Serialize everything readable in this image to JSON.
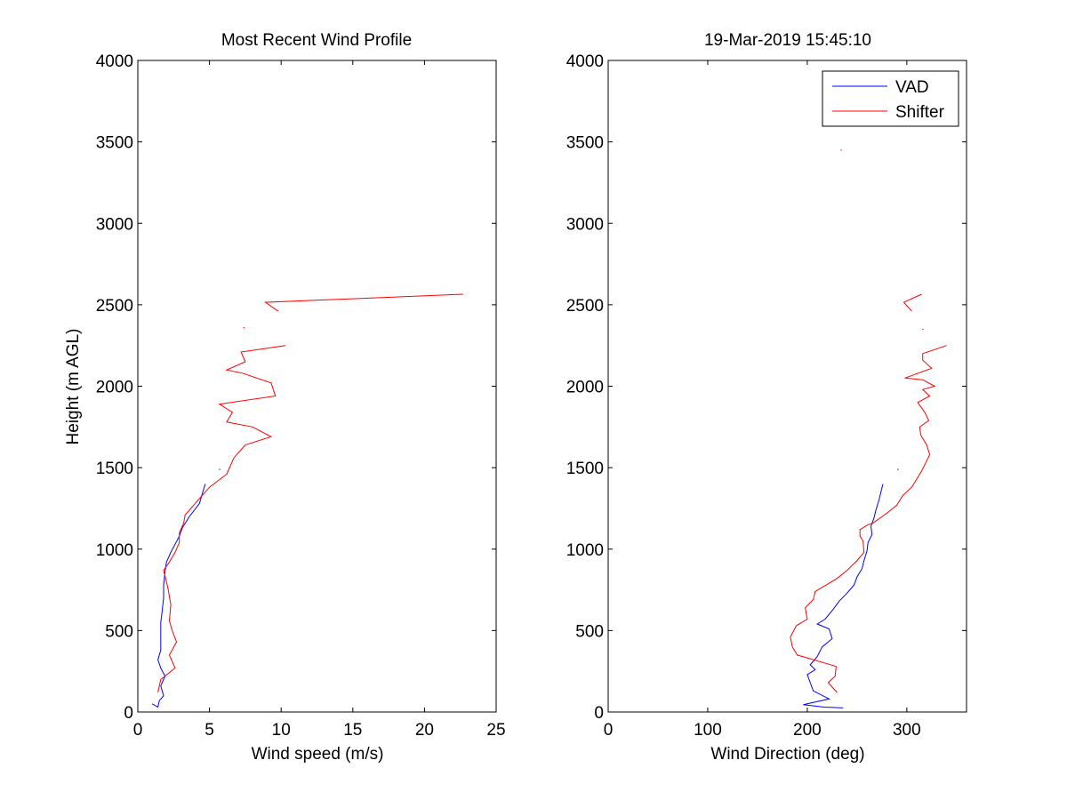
{
  "chart_data": [
    {
      "type": "line",
      "title": "Most Recent Wind Profile",
      "xlabel": "Wind speed (m/s)",
      "ylabel": "Height (m AGL)",
      "xlim": [
        0,
        25
      ],
      "ylim": [
        0,
        4000
      ],
      "xticks": [
        0,
        5,
        10,
        15,
        20,
        25
      ],
      "yticks": [
        0,
        500,
        1000,
        1500,
        2000,
        2500,
        3000,
        3500,
        4000
      ],
      "grid": false,
      "series": [
        {
          "name": "VAD",
          "color": "#0000ff",
          "points": [
            [
              1.0,
              50
            ],
            [
              1.4,
              30
            ],
            [
              1.5,
              70
            ],
            [
              1.8,
              100
            ],
            [
              1.6,
              160
            ],
            [
              1.9,
              220
            ],
            [
              1.6,
              270
            ],
            [
              1.4,
              320
            ],
            [
              1.6,
              380
            ],
            [
              1.6,
              430
            ],
            [
              1.6,
              490
            ],
            [
              1.6,
              550
            ],
            [
              1.7,
              620
            ],
            [
              1.8,
              700
            ],
            [
              1.8,
              780
            ],
            [
              1.9,
              860
            ],
            [
              2.0,
              920
            ],
            [
              2.3,
              980
            ],
            [
              2.6,
              1030
            ],
            [
              2.9,
              1080
            ],
            [
              3.1,
              1130
            ],
            [
              3.6,
              1200
            ],
            [
              4.3,
              1280
            ],
            [
              4.5,
              1340
            ],
            [
              4.7,
              1400
            ]
          ]
        },
        {
          "name": "Shifter",
          "color": "#ff0000",
          "points": [
            [
              1.4,
              120
            ],
            [
              1.6,
              200
            ],
            [
              2.6,
              270
            ],
            [
              2.2,
              350
            ],
            [
              2.7,
              430
            ],
            [
              2.4,
              500
            ],
            [
              2.2,
              560
            ],
            [
              2.3,
              660
            ],
            [
              2.1,
              760
            ],
            [
              1.8,
              870
            ],
            [
              2.2,
              920
            ],
            [
              2.6,
              980
            ],
            [
              2.9,
              1040
            ],
            [
              2.9,
              1100
            ],
            [
              3.2,
              1160
            ],
            [
              3.3,
              1210
            ],
            [
              3.8,
              1260
            ],
            [
              4.4,
              1320
            ],
            [
              5.0,
              1380
            ],
            [
              6.2,
              1460
            ],
            [
              6.7,
              1560
            ],
            [
              7.5,
              1640
            ],
            [
              9.3,
              1690
            ],
            [
              8.0,
              1750
            ],
            [
              6.2,
              1780
            ],
            [
              6.6,
              1840
            ],
            [
              5.7,
              1890
            ],
            [
              9.6,
              1940
            ],
            [
              9.3,
              2020
            ],
            [
              7.3,
              2080
            ],
            [
              6.2,
              2100
            ],
            [
              7.5,
              2150
            ],
            [
              7.2,
              2210
            ],
            [
              10.3,
              2250
            ]
          ]
        },
        {
          "name": "Shifter",
          "color": "#ff0000",
          "points": [
            [
              22.7,
              2565
            ],
            [
              8.9,
              2515
            ],
            [
              9.8,
              2460
            ]
          ]
        },
        {
          "name": "Shifter",
          "color": "#ff0000",
          "points": [
            [
              7.4,
              2360
            ]
          ]
        },
        {
          "name": "VAD",
          "color": "#0000ff",
          "points": [
            [
              5.7,
              1490
            ]
          ]
        }
      ]
    },
    {
      "type": "line",
      "title": "19-Mar-2019 15:45:10",
      "xlabel": "Wind Direction (deg)",
      "ylabel": "",
      "xlim": [
        0,
        360
      ],
      "ylim": [
        0,
        4000
      ],
      "xticks": [
        0,
        100,
        200,
        300
      ],
      "yticks": [
        0,
        500,
        1000,
        1500,
        2000,
        2500,
        3000,
        3500,
        4000
      ],
      "grid": false,
      "legend": {
        "position": "top-right",
        "entries": [
          {
            "label": "VAD",
            "color": "#0000ff"
          },
          {
            "label": "Shifter",
            "color": "#ff0000"
          }
        ]
      },
      "series": [
        {
          "name": "VAD",
          "color": "#0000ff",
          "points": [
            [
              236,
              25
            ],
            [
              217,
              30
            ],
            [
              196,
              45
            ],
            [
              222,
              80
            ],
            [
              206,
              130
            ],
            [
              203,
              180
            ],
            [
              200,
              230
            ],
            [
              208,
              260
            ],
            [
              203,
              290
            ],
            [
              210,
              340
            ],
            [
              215,
              400
            ],
            [
              225,
              450
            ],
            [
              222,
              510
            ],
            [
              210,
              540
            ],
            [
              218,
              570
            ],
            [
              226,
              630
            ],
            [
              232,
              680
            ],
            [
              240,
              730
            ],
            [
              247,
              780
            ],
            [
              250,
              830
            ],
            [
              255,
              880
            ],
            [
              257,
              930
            ],
            [
              260,
              990
            ],
            [
              261,
              1040
            ],
            [
              265,
              1090
            ],
            [
              264,
              1140
            ],
            [
              267,
              1190
            ],
            [
              269,
              1240
            ],
            [
              272,
              1300
            ],
            [
              274,
              1350
            ],
            [
              276,
              1400
            ]
          ]
        },
        {
          "name": "Shifter",
          "color": "#ff0000",
          "points": [
            [
              230,
              120
            ],
            [
              221,
              180
            ],
            [
              228,
              220
            ],
            [
              229,
              280
            ],
            [
              190,
              350
            ],
            [
              185,
              400
            ],
            [
              183,
              460
            ],
            [
              189,
              530
            ],
            [
              200,
              570
            ],
            [
              198,
              640
            ],
            [
              206,
              690
            ],
            [
              208,
              740
            ],
            [
              230,
              820
            ],
            [
              240,
              870
            ],
            [
              250,
              930
            ],
            [
              257,
              980
            ],
            [
              256,
              1050
            ],
            [
              253,
              1080
            ],
            [
              253,
              1120
            ],
            [
              261,
              1150
            ],
            [
              266,
              1160
            ],
            [
              280,
              1220
            ],
            [
              290,
              1270
            ],
            [
              296,
              1330
            ],
            [
              305,
              1380
            ],
            [
              309,
              1420
            ],
            [
              315,
              1480
            ],
            [
              323,
              1580
            ],
            [
              320,
              1640
            ],
            [
              314,
              1700
            ],
            [
              313,
              1750
            ],
            [
              322,
              1790
            ],
            [
              318,
              1840
            ],
            [
              311,
              1900
            ],
            [
              323,
              1940
            ],
            [
              316,
              1980
            ],
            [
              328,
              2000
            ],
            [
              316,
              2040
            ],
            [
              298,
              2050
            ],
            [
              325,
              2110
            ],
            [
              316,
              2160
            ],
            [
              316,
              2200
            ],
            [
              340,
              2250
            ]
          ]
        },
        {
          "name": "Shifter",
          "color": "#ff0000",
          "points": [
            [
              315,
              2565
            ],
            [
              297,
              2515
            ],
            [
              305,
              2460
            ]
          ]
        },
        {
          "name": "Shifter",
          "color": "#ff0000",
          "points": [
            [
              316,
              2350
            ]
          ]
        },
        {
          "name": "Shifter",
          "color": "#ff0000",
          "points": [
            [
              234,
              3450
            ]
          ]
        },
        {
          "name": "VAD",
          "color": "#0000ff",
          "points": [
            [
              291,
              1490
            ]
          ]
        }
      ]
    }
  ]
}
